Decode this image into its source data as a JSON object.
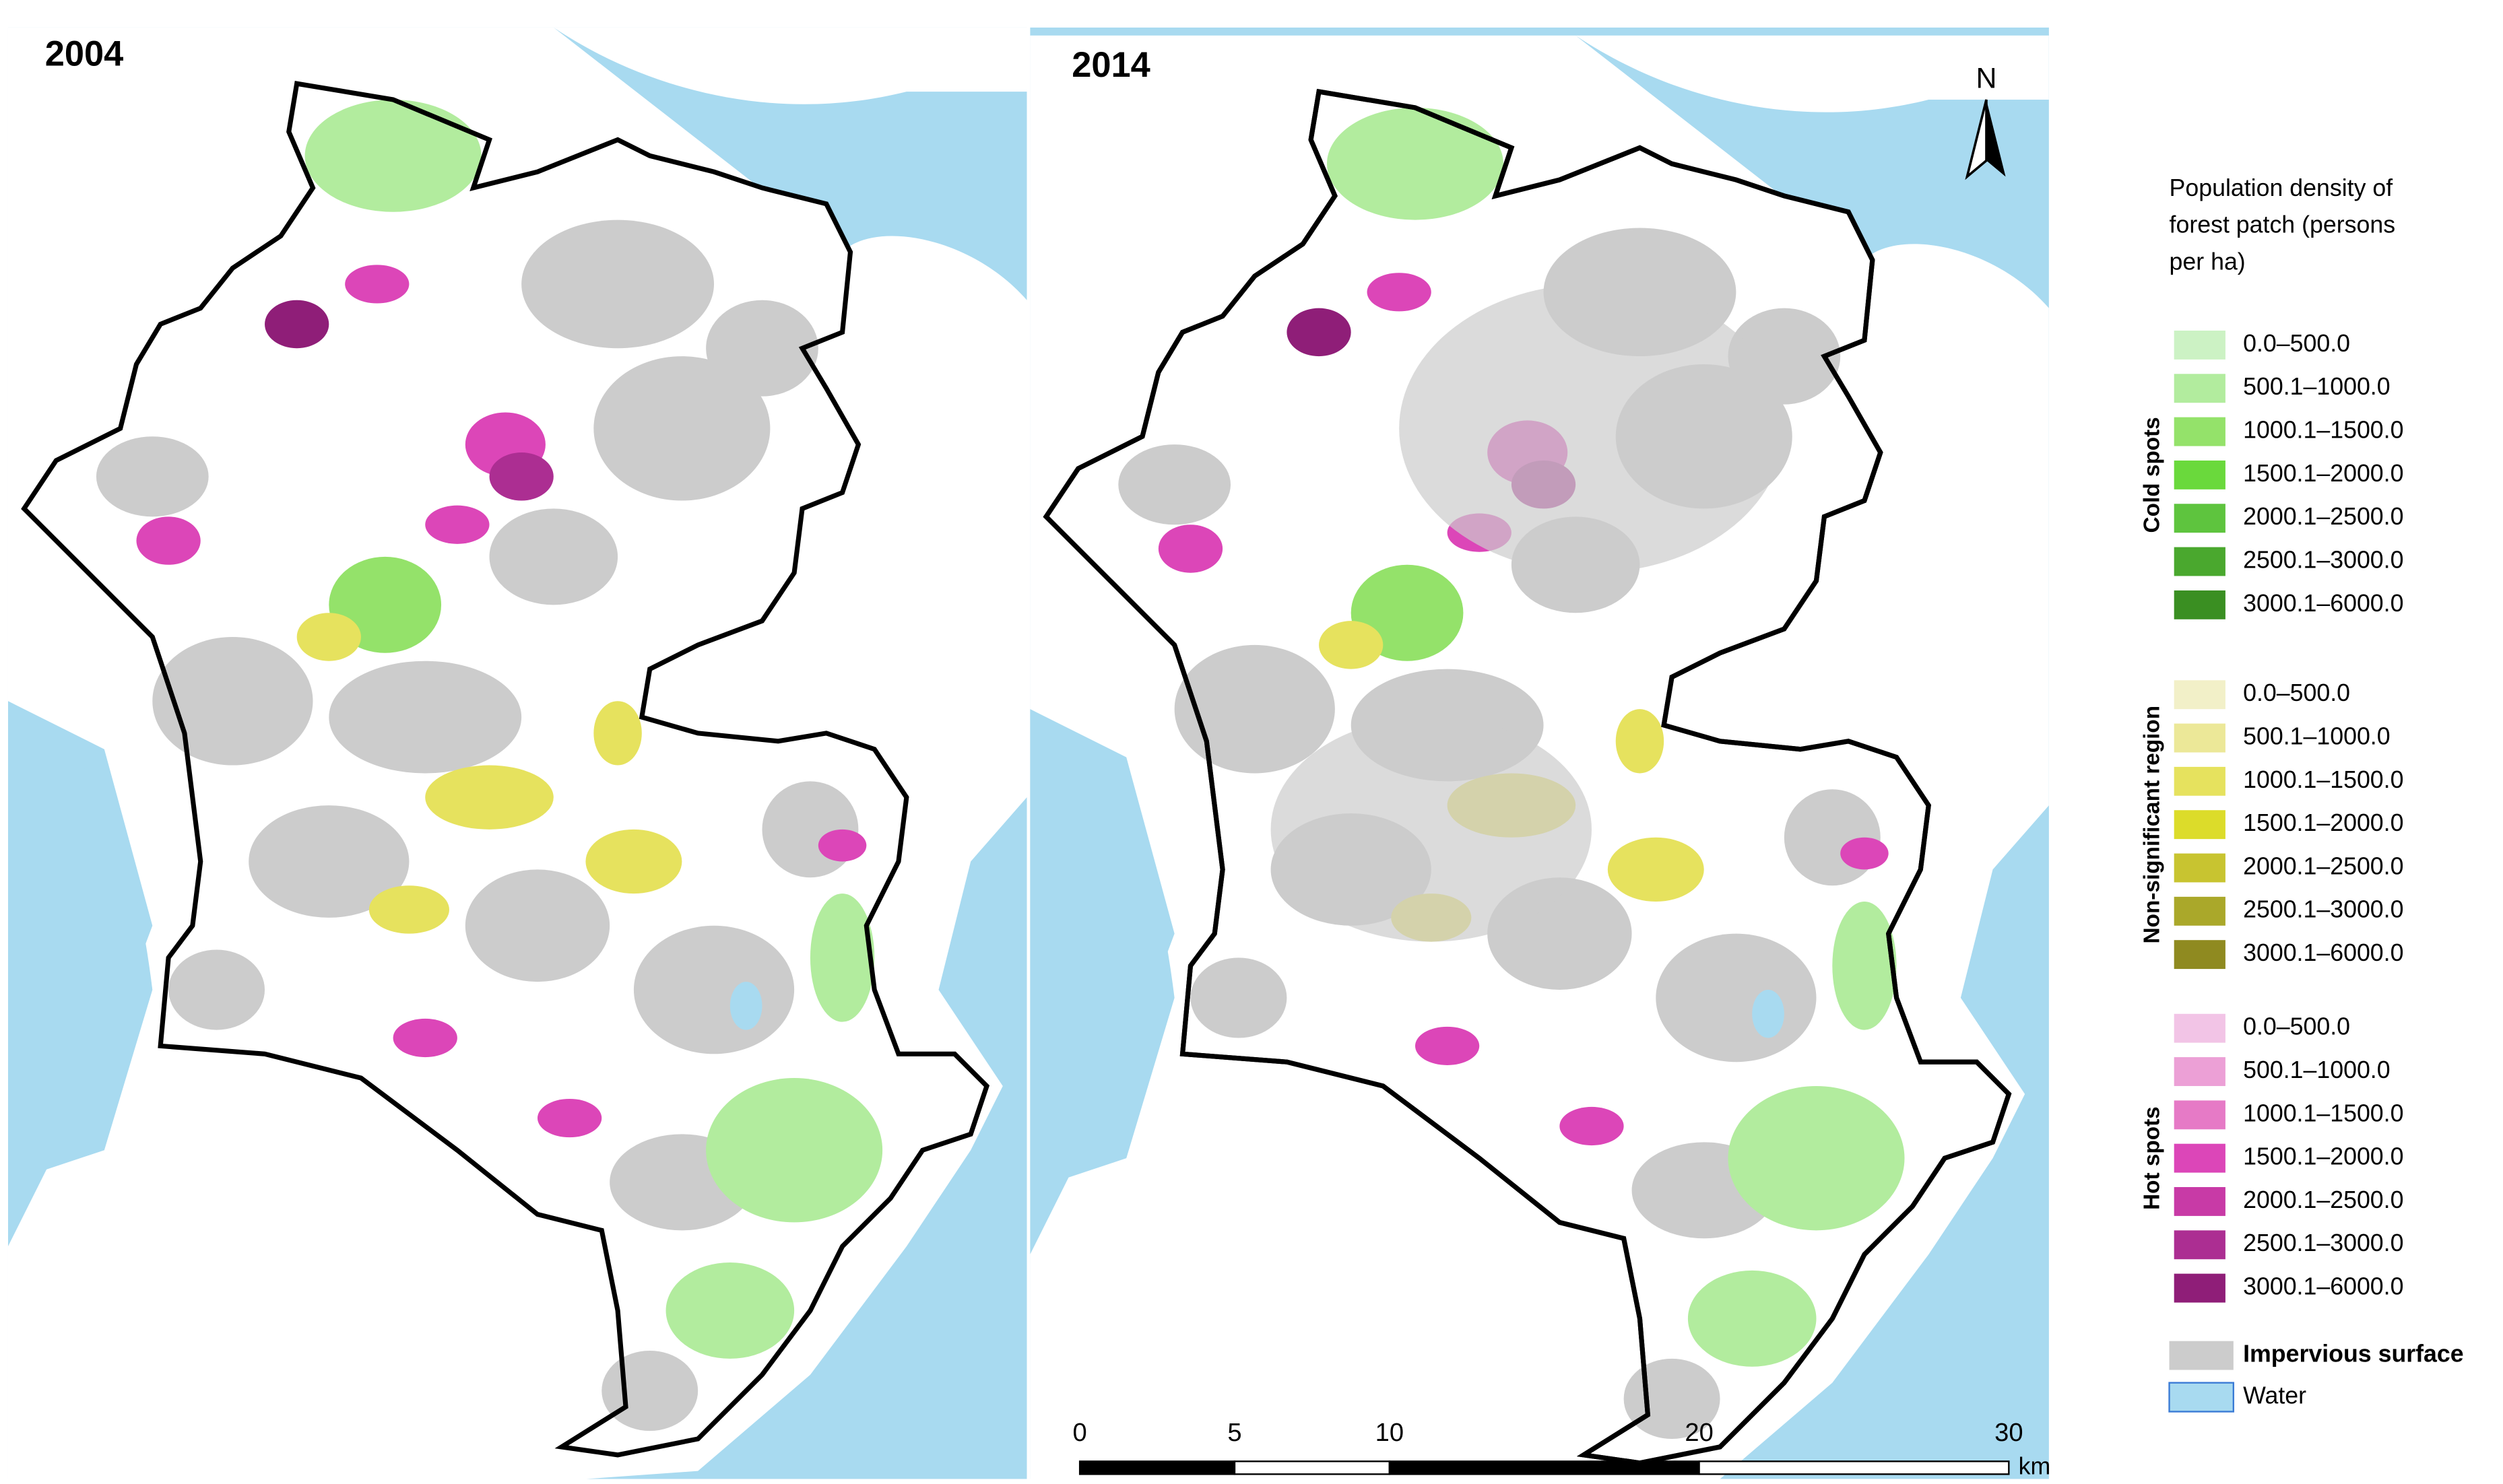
{
  "panels": [
    {
      "title": "2004"
    },
    {
      "title": "2014"
    }
  ],
  "north_arrow": "N",
  "legend": {
    "title_lines": [
      "Population density of",
      "forest patch (persons",
      "per ha)"
    ],
    "groups": [
      {
        "label": "Cold spots",
        "items": [
          {
            "label": "0.0–500.0",
            "color": "#ccf2c4"
          },
          {
            "label": "500.1–1000.0",
            "color": "#b2ec9e"
          },
          {
            "label": "1000.1–1500.0",
            "color": "#94e26a"
          },
          {
            "label": "1500.1–2000.0",
            "color": "#6ad93c"
          },
          {
            "label": "2000.1–2500.0",
            "color": "#5ec43e"
          },
          {
            "label": "2500.1–3000.0",
            "color": "#4aa82e"
          },
          {
            "label": "3000.1–6000.0",
            "color": "#3a8f22"
          }
        ]
      },
      {
        "label": "Non-significant region",
        "items": [
          {
            "label": "0.0–500.0",
            "color": "#f2f0c8"
          },
          {
            "label": "500.1–1000.0",
            "color": "#ece898"
          },
          {
            "label": "1000.1–1500.0",
            "color": "#e6e25e"
          },
          {
            "label": "1500.1–2000.0",
            "color": "#dcdc2a"
          },
          {
            "label": "2000.1–2500.0",
            "color": "#c8c430"
          },
          {
            "label": "2500.1–3000.0",
            "color": "#aaa82a"
          },
          {
            "label": "3000.1–6000.0",
            "color": "#8f8a20"
          }
        ]
      },
      {
        "label": "Hot spots",
        "items": [
          {
            "label": "0.0–500.0",
            "color": "#f2c4e6"
          },
          {
            "label": "500.1–1000.0",
            "color": "#eca0d6"
          },
          {
            "label": "1000.1–1500.0",
            "color": "#e67ac6"
          },
          {
            "label": "1500.1–2000.0",
            "color": "#dc46b8"
          },
          {
            "label": "2000.1–2500.0",
            "color": "#c83aa6"
          },
          {
            "label": "2500.1–3000.0",
            "color": "#ac2e92"
          },
          {
            "label": "3000.1–6000.0",
            "color": "#8f1e78"
          }
        ]
      }
    ],
    "extras": [
      {
        "label": "Impervious surface",
        "color": "#cccccc"
      },
      {
        "label": "Water",
        "color": "#a8daf0"
      }
    ]
  },
  "scale_bar": {
    "ticks": [
      0,
      5,
      10,
      20,
      30
    ],
    "unit": "km"
  }
}
